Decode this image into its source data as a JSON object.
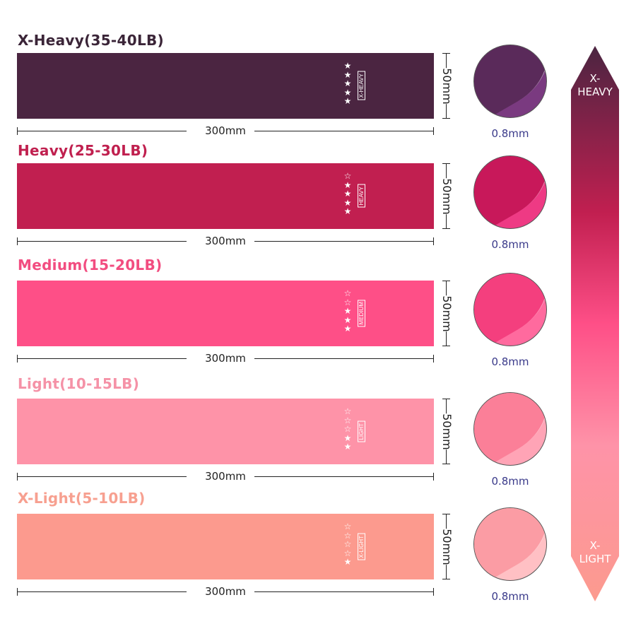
{
  "bands": [
    {
      "title": "X-Heavy(35-40LB)",
      "tag": "X-HEAVY",
      "stars_filled": 5,
      "stars_total": 5,
      "width_label": "300mm",
      "height_label": "50mm",
      "thickness_label": "0.8mm",
      "color": "#4b2541",
      "title_color": "#3b2538",
      "circle_dark": "#5a2a5a",
      "circle_light": "#7a3a80"
    },
    {
      "title": "Heavy(25-30LB)",
      "tag": "HEAVY",
      "stars_filled": 4,
      "stars_total": 5,
      "width_label": "300mm",
      "height_label": "50mm",
      "thickness_label": "0.8mm",
      "color": "#c11f50",
      "title_color": "#c0204f",
      "circle_dark": "#c8185a",
      "circle_light": "#ee3a84"
    },
    {
      "title": "Medium(15-20LB)",
      "tag": "MEDIUM",
      "stars_filled": 3,
      "stars_total": 5,
      "width_label": "300mm",
      "height_label": "50mm",
      "thickness_label": "0.8mm",
      "color": "#fe4f87",
      "title_color": "#f24d80",
      "circle_dark": "#f43f7e",
      "circle_light": "#ff6a9e"
    },
    {
      "title": "Light(10-15LB)",
      "tag": "LIGHT",
      "stars_filled": 2,
      "stars_total": 5,
      "width_label": "300mm",
      "height_label": "50mm",
      "thickness_label": "0.8mm",
      "color": "#fe93a8",
      "title_color": "#f592a7",
      "circle_dark": "#fb7f98",
      "circle_light": "#ffa4b6"
    },
    {
      "title": "X-Light(5-10LB)",
      "tag": "X-LIGHT",
      "stars_filled": 1,
      "stars_total": 5,
      "width_label": "300mm",
      "height_label": "50mm",
      "thickness_label": "0.8mm",
      "color": "#fc9a8e",
      "title_color": "#f7a090",
      "circle_dark": "#fb9ca4",
      "circle_light": "#ffc0c4"
    }
  ],
  "scale": {
    "top_label": "X-\nHEAVY",
    "top_line1": "X-",
    "top_line2": "HEAVY",
    "bottom_line1": "X-",
    "bottom_line2": "LIGHT",
    "gradient": [
      "#4b2541",
      "#c11f50",
      "#fe4f87",
      "#fe93a8",
      "#fc9a8e"
    ]
  }
}
